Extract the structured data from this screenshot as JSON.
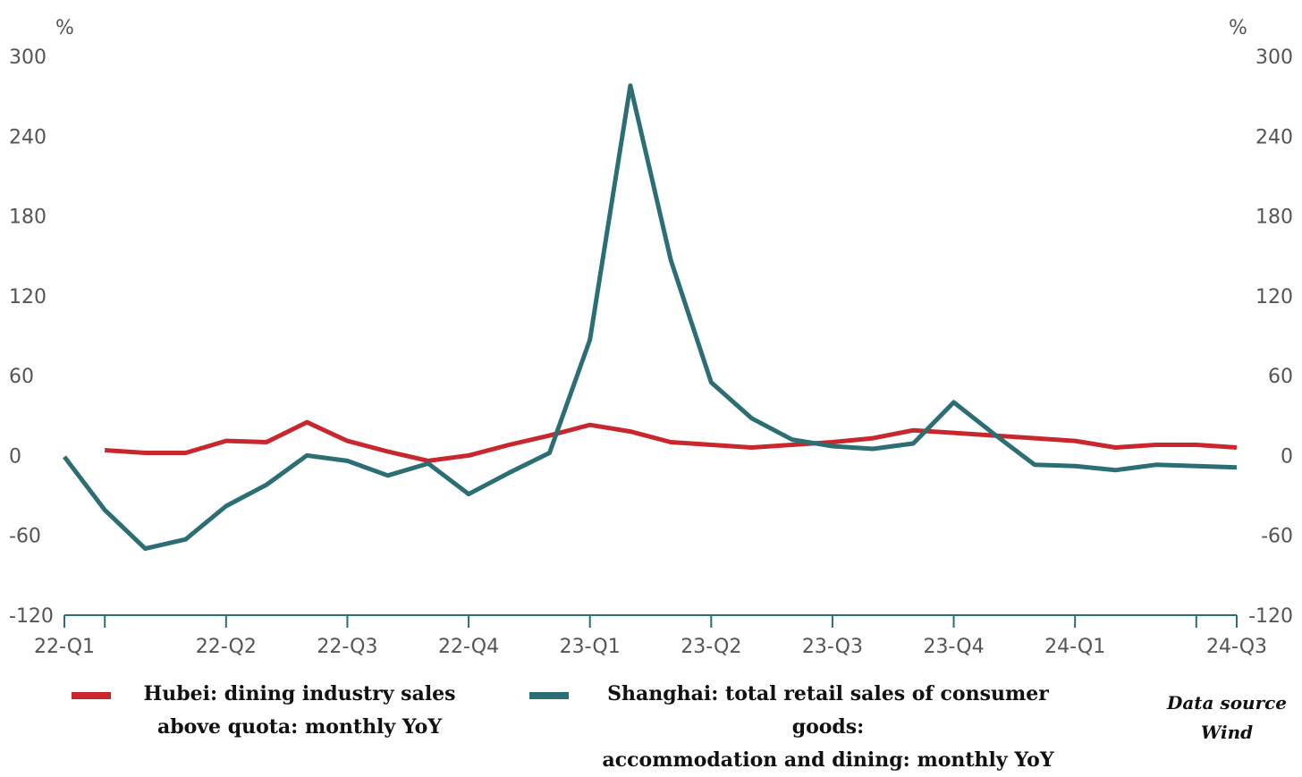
{
  "chart_data": {
    "type": "line",
    "y_unit_left": "%",
    "y_unit_right": "%",
    "ylim": [
      -120,
      300
    ],
    "yticks": [
      300,
      240,
      180,
      120,
      60,
      0,
      -60,
      -120
    ],
    "grid": false,
    "x_month_index_range": [
      0,
      29
    ],
    "xticks": [
      {
        "label": "22-Q1",
        "month_index": 0,
        "labeled": true
      },
      {
        "label": "",
        "month_index": 1,
        "labeled": false
      },
      {
        "label": "22-Q2",
        "month_index": 4,
        "labeled": true
      },
      {
        "label": "22-Q3",
        "month_index": 7,
        "labeled": true
      },
      {
        "label": "22-Q4",
        "month_index": 10,
        "labeled": true
      },
      {
        "label": "23-Q1",
        "month_index": 13,
        "labeled": true
      },
      {
        "label": "23-Q2",
        "month_index": 16,
        "labeled": true
      },
      {
        "label": "23-Q3",
        "month_index": 19,
        "labeled": true
      },
      {
        "label": "23-Q4",
        "month_index": 22,
        "labeled": true
      },
      {
        "label": "24-Q1",
        "month_index": 25,
        "labeled": true
      },
      {
        "label": "",
        "month_index": 28,
        "labeled": false
      },
      {
        "label": "24-Q3",
        "month_index": 29,
        "labeled": true
      }
    ],
    "series": [
      {
        "name": "Hubei: dining industry sales above quota: monthly YoY",
        "color": "#c8282d",
        "points": [
          [
            1,
            4
          ],
          [
            2,
            2
          ],
          [
            3,
            2
          ],
          [
            4,
            11
          ],
          [
            5,
            10
          ],
          [
            6,
            25
          ],
          [
            7,
            11
          ],
          [
            8,
            3
          ],
          [
            9,
            -4
          ],
          [
            10,
            0
          ],
          [
            11,
            8
          ],
          [
            12,
            15
          ],
          [
            13,
            23
          ],
          [
            14,
            18
          ],
          [
            15,
            10
          ],
          [
            16,
            8
          ],
          [
            17,
            6
          ],
          [
            18,
            8
          ],
          [
            19,
            10
          ],
          [
            20,
            13
          ],
          [
            21,
            19
          ],
          [
            22,
            17
          ],
          [
            23,
            15
          ],
          [
            24,
            13
          ],
          [
            25,
            11
          ],
          [
            26,
            6
          ],
          [
            27,
            8
          ],
          [
            28,
            8
          ],
          [
            29,
            6
          ]
        ]
      },
      {
        "name": "Shanghai: total retail sales of consumer goods: accommodation and dining: monthly YoY",
        "color": "#2b6f74",
        "points": [
          [
            0,
            -1
          ],
          [
            1,
            -41
          ],
          [
            2,
            -70
          ],
          [
            3,
            -63
          ],
          [
            4,
            -38
          ],
          [
            5,
            -22
          ],
          [
            6,
            0
          ],
          [
            7,
            -4
          ],
          [
            8,
            -15
          ],
          [
            9,
            -6
          ],
          [
            10,
            -29
          ],
          [
            11,
            -13
          ],
          [
            12,
            2
          ],
          [
            13,
            87
          ],
          [
            14,
            278
          ],
          [
            15,
            147
          ],
          [
            16,
            55
          ],
          [
            17,
            28
          ],
          [
            18,
            12
          ],
          [
            19,
            7
          ],
          [
            20,
            5
          ],
          [
            21,
            9
          ],
          [
            22,
            40
          ],
          [
            23,
            16
          ],
          [
            24,
            -7
          ],
          [
            25,
            -8
          ],
          [
            26,
            -11
          ],
          [
            27,
            -7
          ],
          [
            28,
            -8
          ],
          [
            29,
            -9
          ]
        ]
      }
    ],
    "legend": {
      "placement": "bottom",
      "entries": [
        {
          "lines": [
            "Hubei: dining industry sales",
            "above quota: monthly YoY"
          ],
          "color": "#c8282d"
        },
        {
          "lines": [
            "Shanghai: total retail sales of consumer goods:",
            "accommodation and dining: monthly YoY"
          ],
          "color": "#2b6f74"
        }
      ]
    },
    "source": [
      "Data source",
      "Wind"
    ]
  }
}
